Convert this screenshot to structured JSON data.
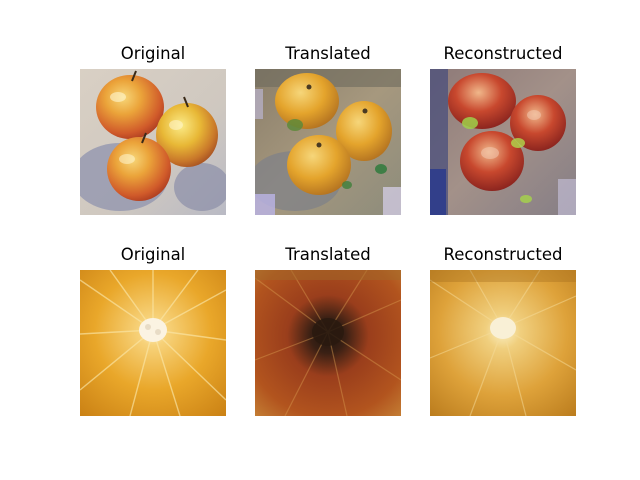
{
  "figure": {
    "rows": [
      {
        "panels": [
          {
            "title": "Original",
            "image": "painted-apples-original"
          },
          {
            "title": "Translated",
            "image": "apples-translated-to-orange-style"
          },
          {
            "title": "Reconstructed",
            "image": "apples-reconstructed"
          }
        ]
      },
      {
        "panels": [
          {
            "title": "Original",
            "image": "orange-slice-original"
          },
          {
            "title": "Translated",
            "image": "orange-translated-to-apple-style"
          },
          {
            "title": "Reconstructed",
            "image": "orange-reconstructed"
          }
        ]
      }
    ]
  }
}
